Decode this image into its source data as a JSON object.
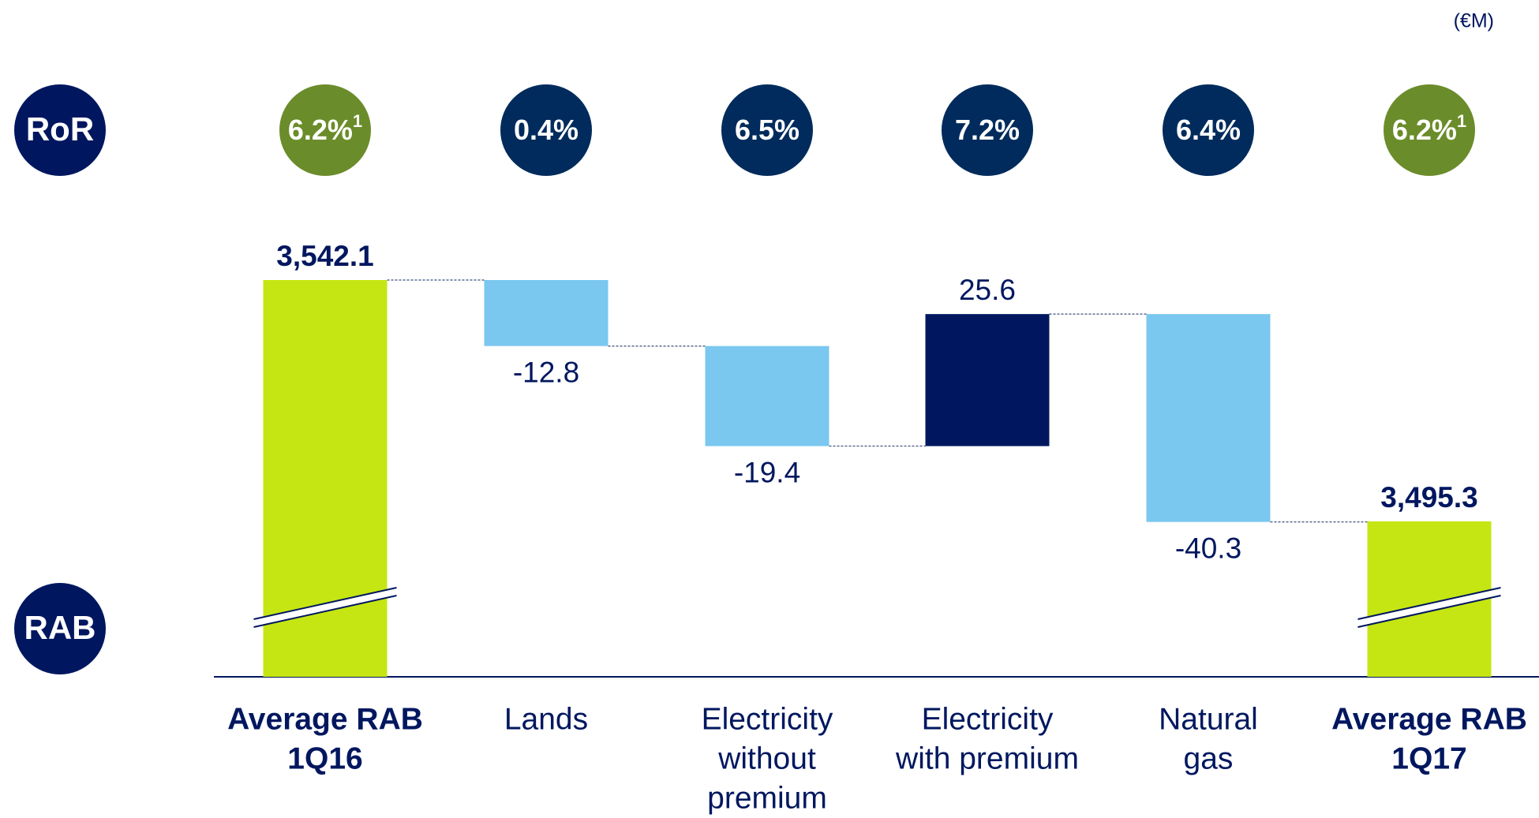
{
  "chart_data": {
    "type": "waterfall",
    "unit": "(€M)",
    "y_label": "RAB",
    "categories": [
      [
        "Average RAB",
        "1Q16"
      ],
      [
        "Lands"
      ],
      [
        "Electricity",
        "without",
        "premium"
      ],
      [
        "Electricity",
        "with premium"
      ],
      [
        "Natural",
        "gas"
      ],
      [
        "Average RAB",
        "1Q17"
      ]
    ],
    "values": [
      3542.1,
      -12.8,
      -19.4,
      25.6,
      -40.3,
      3495.3
    ],
    "value_labels": [
      "3,542.1",
      "-12.8",
      "-19.4",
      "25.6",
      "-40.3",
      "3,495.3"
    ],
    "totals": [
      0,
      5
    ],
    "colors": {
      "total": "#c5e612",
      "increase": "#00175f",
      "decrease": "#7ac7f0"
    },
    "ror": {
      "label": "RoR",
      "values": [
        6.2,
        0.4,
        6.5,
        7.2,
        6.4,
        6.2
      ],
      "value_labels": [
        "6.2%",
        "0.4%",
        "6.5%",
        "7.2%",
        "6.4%",
        "6.2%"
      ],
      "footnotes": [
        "1",
        null,
        null,
        null,
        null,
        "1"
      ],
      "colors": [
        "#6b8c2a",
        "#002b5c",
        "#002b5c",
        "#002b5c",
        "#002b5c",
        "#6b8c2a"
      ]
    }
  }
}
